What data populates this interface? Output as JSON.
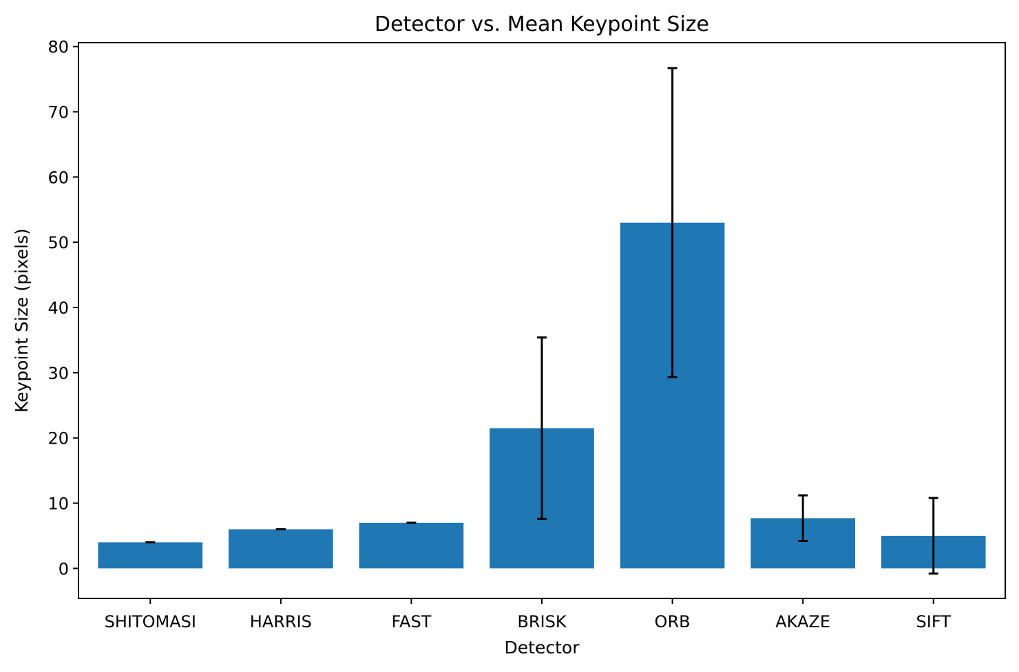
{
  "chart_data": {
    "type": "bar",
    "title": "Detector vs. Mean Keypoint Size",
    "xlabel": "Detector",
    "ylabel": "Keypoint Size (pixels)",
    "categories": [
      "SHITOMASI",
      "HARRIS",
      "FAST",
      "BRISK",
      "ORB",
      "AKAZE",
      "SIFT"
    ],
    "values": [
      4.0,
      6.0,
      7.0,
      21.5,
      53.0,
      7.7,
      5.0
    ],
    "errors": [
      0.0,
      0.0,
      0.0,
      13.9,
      23.7,
      3.5,
      5.8
    ],
    "ylim": [
      -4.6,
      80.6
    ],
    "yticks": [
      0,
      10,
      20,
      30,
      40,
      50,
      60,
      70,
      80
    ],
    "bar_color": "#1f77b4",
    "error_color": "#000000",
    "grid": false,
    "legend": false
  }
}
